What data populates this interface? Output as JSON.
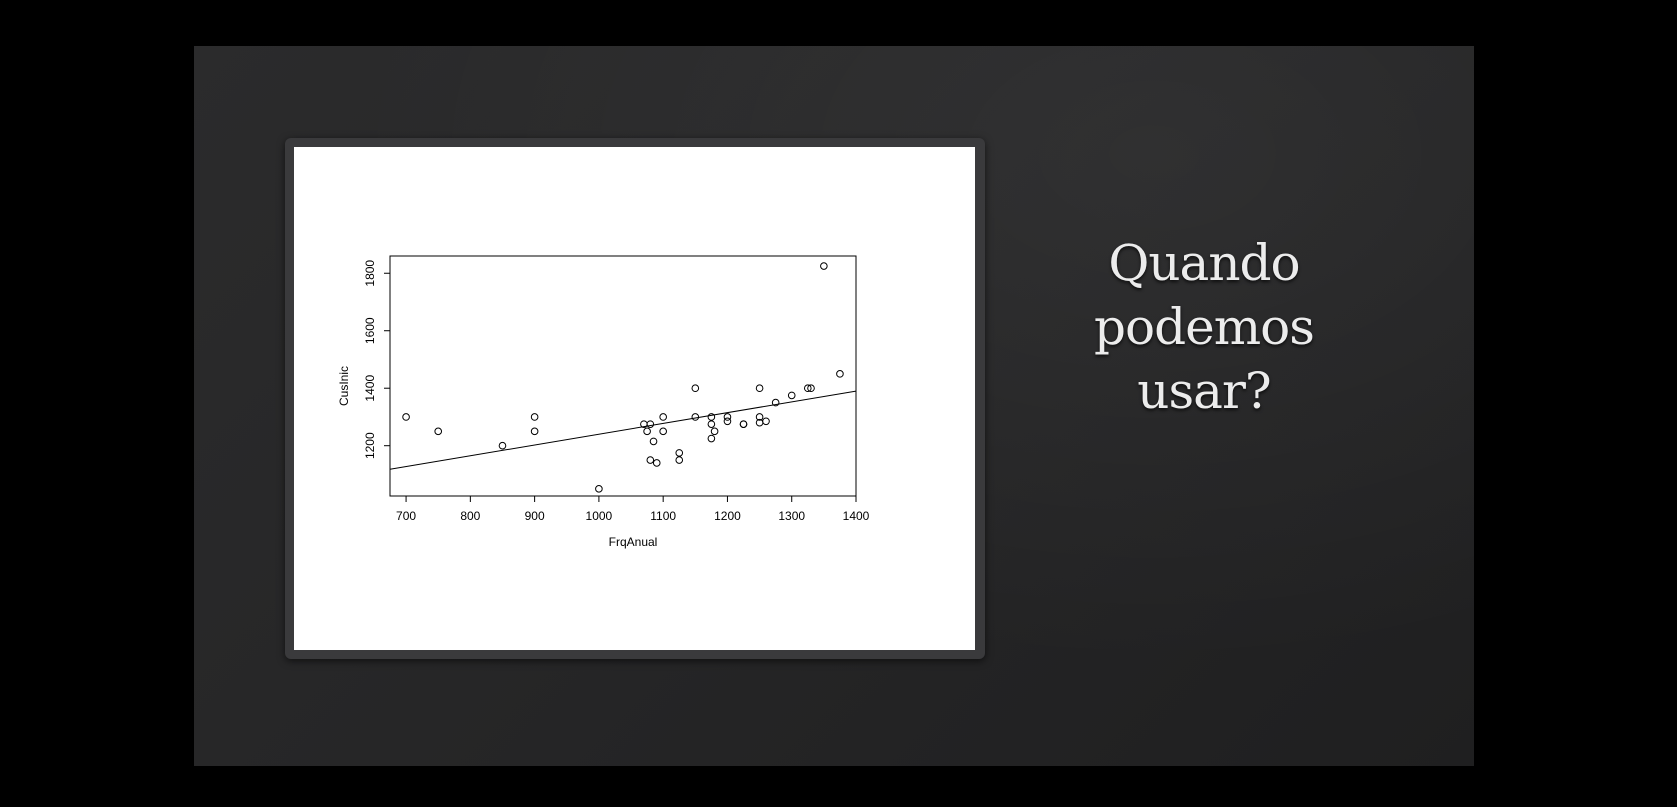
{
  "slide": {
    "title_lines": [
      "Quando",
      "podemos",
      "usar?"
    ]
  },
  "chart_data": {
    "type": "scatter",
    "xlabel": "FrqAnual",
    "ylabel": "CusInic",
    "xlim": [
      675,
      1400
    ],
    "ylim": [
      1025,
      1860
    ],
    "xticks": [
      700,
      800,
      900,
      1000,
      1100,
      1200,
      1300,
      1400
    ],
    "yticks": [
      1200,
      1400,
      1600,
      1800
    ],
    "points": [
      [
        700,
        1300
      ],
      [
        750,
        1250
      ],
      [
        850,
        1200
      ],
      [
        900,
        1300
      ],
      [
        900,
        1250
      ],
      [
        1000,
        1050
      ],
      [
        1070,
        1275
      ],
      [
        1075,
        1250
      ],
      [
        1080,
        1150
      ],
      [
        1080,
        1275
      ],
      [
        1085,
        1215
      ],
      [
        1090,
        1140
      ],
      [
        1100,
        1300
      ],
      [
        1100,
        1250
      ],
      [
        1125,
        1175
      ],
      [
        1125,
        1150
      ],
      [
        1150,
        1400
      ],
      [
        1150,
        1300
      ],
      [
        1175,
        1300
      ],
      [
        1175,
        1275
      ],
      [
        1175,
        1225
      ],
      [
        1180,
        1250
      ],
      [
        1200,
        1300
      ],
      [
        1200,
        1285
      ],
      [
        1225,
        1275
      ],
      [
        1225,
        1275
      ],
      [
        1250,
        1400
      ],
      [
        1250,
        1300
      ],
      [
        1250,
        1280
      ],
      [
        1260,
        1285
      ],
      [
        1275,
        1350
      ],
      [
        1300,
        1375
      ],
      [
        1325,
        1400
      ],
      [
        1330,
        1400
      ],
      [
        1350,
        1825
      ],
      [
        1375,
        1450
      ]
    ],
    "regression_line": [
      [
        675,
        1118
      ],
      [
        1400,
        1390
      ]
    ]
  }
}
